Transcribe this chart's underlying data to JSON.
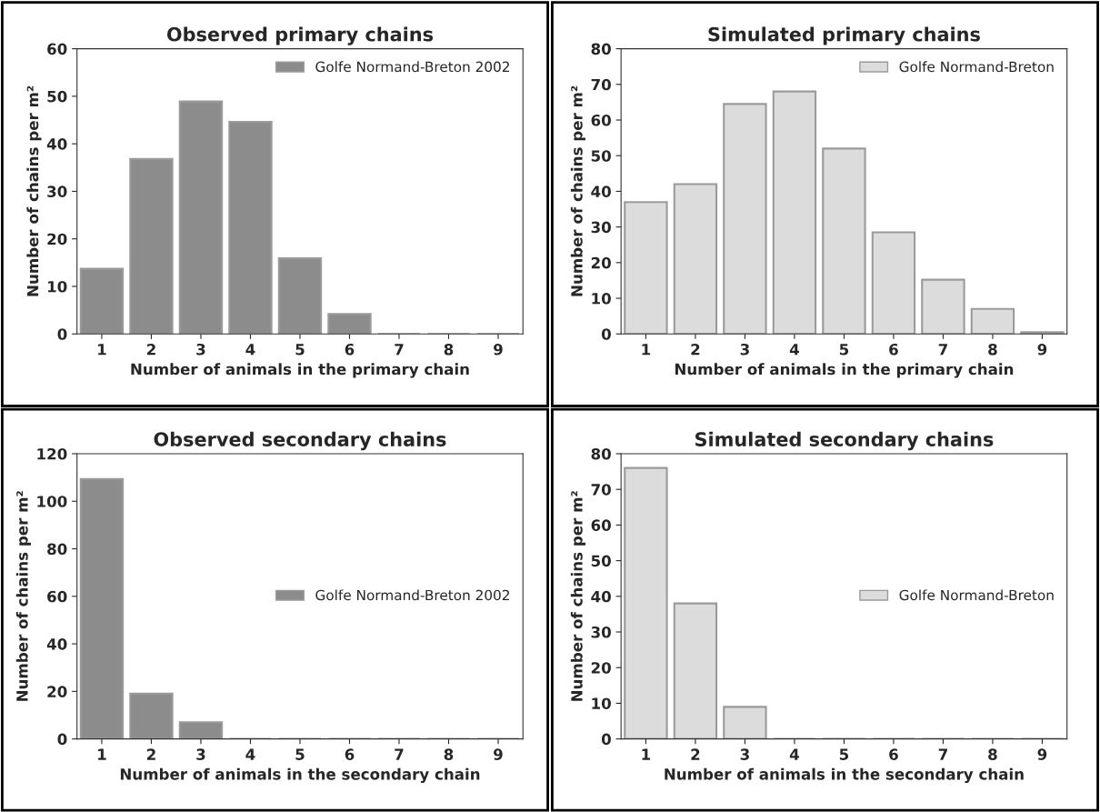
{
  "chart_data": [
    {
      "type": "bar",
      "title": "Observed primary chains",
      "xlabel": "Number of animals in the primary chain",
      "ylabel": "Number of chains per m²",
      "categories": [
        "1",
        "2",
        "3",
        "4",
        "5",
        "6",
        "7",
        "8",
        "9"
      ],
      "series": [
        {
          "name": "Golfe Normand-Breton 2002",
          "color": "#8c8c8c",
          "values": [
            13.7,
            36.8,
            48.9,
            44.6,
            15.9,
            4.2,
            0,
            0,
            0
          ]
        }
      ],
      "ylim": [
        0,
        60
      ],
      "yticks": [
        0,
        10,
        20,
        30,
        40,
        50,
        60
      ],
      "legend": "top right",
      "grid": false
    },
    {
      "type": "bar",
      "title": "Simulated primary chains",
      "xlabel": "Number of animals in the primary chain",
      "ylabel": "Number of chains per m²",
      "categories": [
        "1",
        "2",
        "3",
        "4",
        "5",
        "6",
        "7",
        "8",
        "9"
      ],
      "series": [
        {
          "name": "Golfe Normand-Breton",
          "color": "#dcdcdc",
          "values": [
            37,
            42,
            64.5,
            68,
            52,
            28.5,
            15.2,
            7,
            0.5
          ]
        }
      ],
      "ylim": [
        0,
        80
      ],
      "yticks": [
        0,
        10,
        20,
        30,
        40,
        50,
        60,
        70,
        80
      ],
      "legend": "top right",
      "grid": false
    },
    {
      "type": "bar",
      "title": "Observed secondary chains",
      "xlabel": "Number of animals in the secondary chain",
      "ylabel": "Number of chains per m²",
      "categories": [
        "1",
        "2",
        "3",
        "4",
        "5",
        "6",
        "7",
        "8",
        "9"
      ],
      "series": [
        {
          "name": "Golfe Normand-Breton 2002",
          "color": "#8c8c8c",
          "values": [
            109.4,
            19.1,
            7.0,
            0,
            0,
            0,
            0,
            0,
            0
          ]
        }
      ],
      "ylim": [
        0,
        120
      ],
      "yticks": [
        0,
        20,
        40,
        60,
        80,
        100,
        120
      ],
      "legend": "right",
      "grid": false
    },
    {
      "type": "bar",
      "title": "Simulated secondary chains",
      "xlabel": "Number of animals in the secondary chain",
      "ylabel": "Number of chains per m²",
      "categories": [
        "1",
        "2",
        "3",
        "4",
        "5",
        "6",
        "7",
        "8",
        "9"
      ],
      "series": [
        {
          "name": "Golfe Normand-Breton",
          "color": "#dcdcdc",
          "values": [
            76,
            38,
            9,
            0,
            0,
            0,
            0,
            0,
            0
          ]
        }
      ],
      "ylim": [
        0,
        80
      ],
      "yticks": [
        0,
        10,
        20,
        30,
        40,
        50,
        60,
        70,
        80
      ],
      "legend": "right",
      "grid": false
    }
  ]
}
